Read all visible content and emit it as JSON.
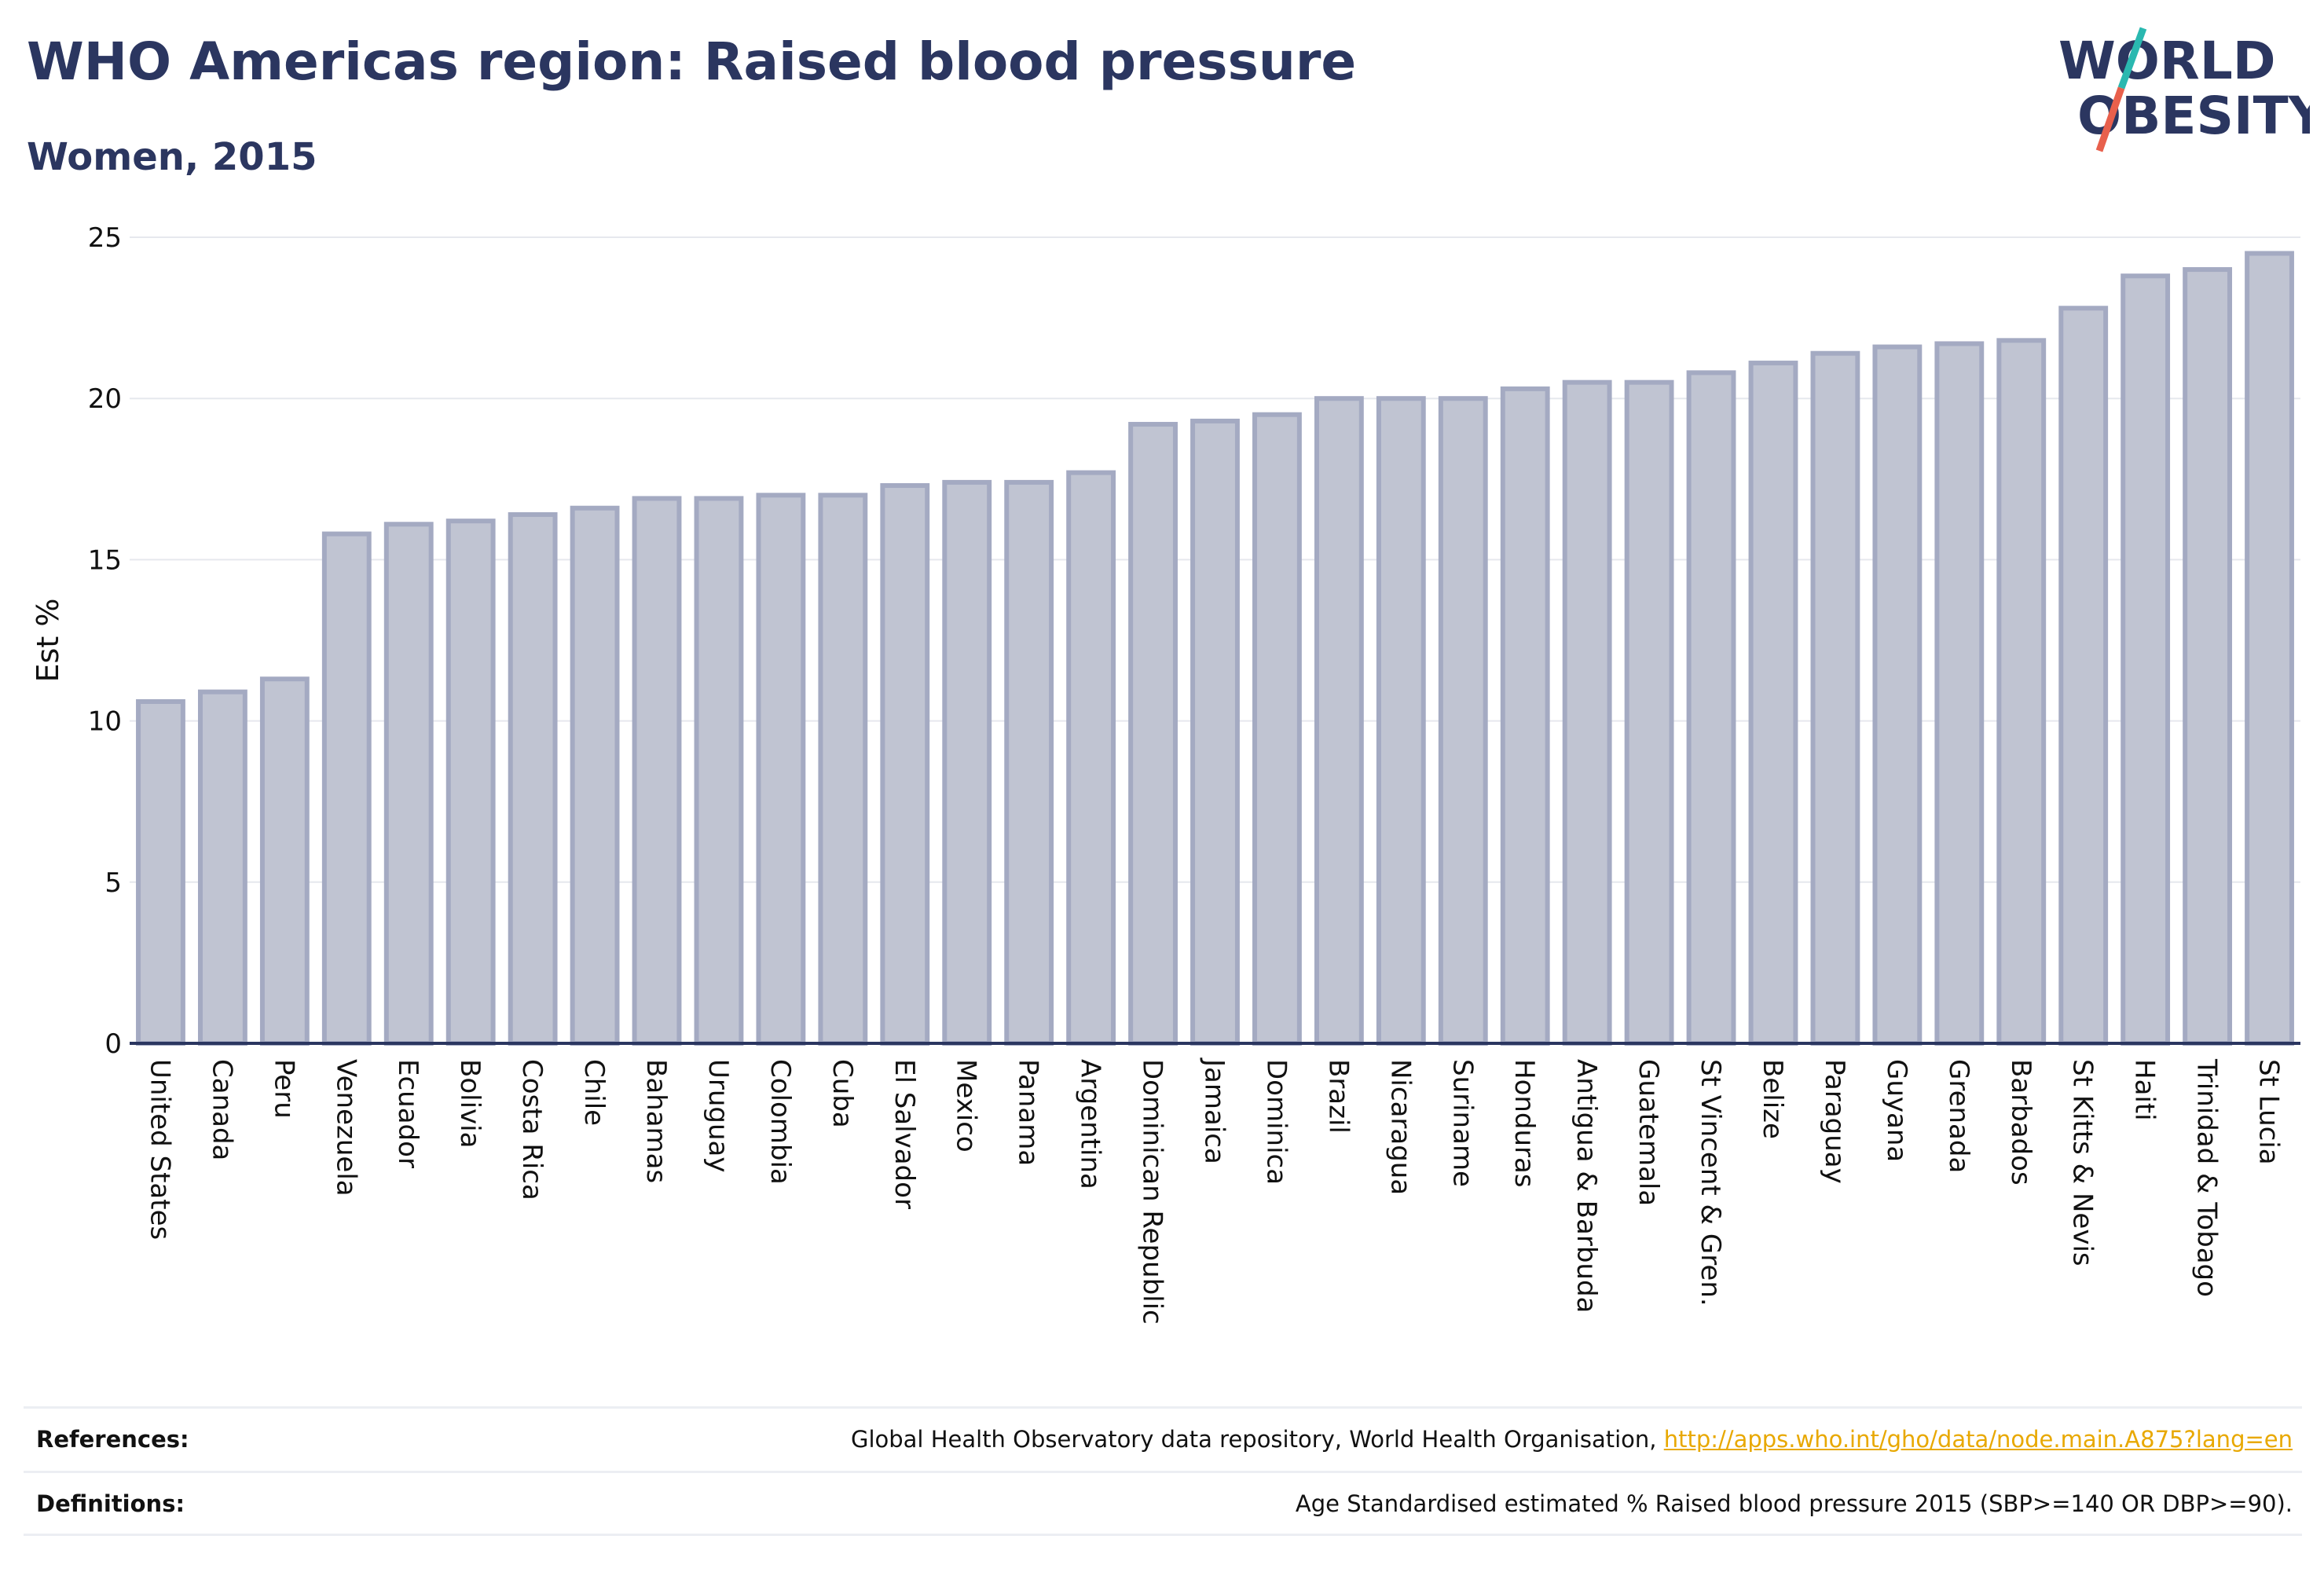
{
  "header": {
    "title": "WHO Americas region: Raised blood pressure",
    "subtitle": "Women, 2015"
  },
  "logo": {
    "line1": "WORLD",
    "line2": "OBESITY",
    "colors": {
      "text": "#2b3660",
      "slash_top": "#2ab8b0",
      "slash_bottom": "#e8604c"
    }
  },
  "chart_data": {
    "type": "bar",
    "title": "WHO Americas region: Raised blood pressure",
    "subtitle": "Women, 2015",
    "xlabel": "",
    "ylabel": "Est %",
    "ylim": [
      0,
      25
    ],
    "yticks": [
      0,
      5,
      10,
      15,
      20,
      25
    ],
    "grid": true,
    "bar_fill": "#c0c4d2",
    "bar_stroke": "#a4aac2",
    "categories": [
      "United States",
      "Canada",
      "Peru",
      "Venezuela",
      "Ecuador",
      "Bolivia",
      "Costa Rica",
      "Chile",
      "Bahamas",
      "Uruguay",
      "Colombia",
      "Cuba",
      "El Salvador",
      "Mexico",
      "Panama",
      "Argentina",
      "Dominican Republic",
      "Jamaica",
      "Dominica",
      "Brazil",
      "Nicaragua",
      "Suriname",
      "Honduras",
      "Antigua & Barbuda",
      "Guatemala",
      "St Vincent & Gren.",
      "Belize",
      "Paraguay",
      "Guyana",
      "Grenada",
      "Barbados",
      "St Kitts & Nevis",
      "Haiti",
      "Trinidad & Tobago",
      "St Lucia"
    ],
    "values": [
      10.6,
      10.9,
      11.3,
      15.8,
      16.1,
      16.2,
      16.4,
      16.6,
      16.9,
      16.9,
      17.0,
      17.0,
      17.3,
      17.4,
      17.4,
      17.7,
      19.2,
      19.3,
      19.5,
      20.0,
      20.0,
      20.0,
      20.3,
      20.5,
      20.5,
      20.8,
      21.1,
      21.4,
      21.6,
      21.7,
      21.8,
      22.8,
      23.8,
      24.0,
      24.5
    ]
  },
  "footer": {
    "references_label": "References:",
    "references_text": "Global Health Observatory data repository, World Health Organisation,",
    "references_link": "http://apps.who.int/gho/data/node.main.A875?lang=en",
    "definitions_label": "Definitions:",
    "definitions_text": "Age Standardised estimated % Raised blood pressure 2015 (SBP>=140 OR DBP>=90)."
  }
}
